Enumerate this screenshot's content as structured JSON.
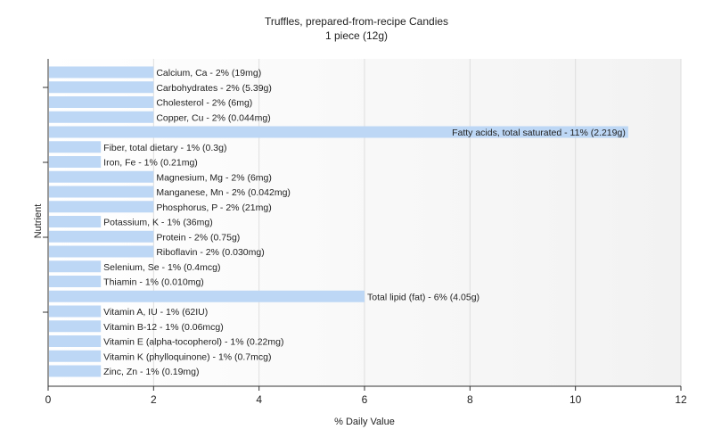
{
  "chart_data": {
    "type": "bar",
    "orientation": "horizontal",
    "title": "Truffles, prepared-from-recipe Candies",
    "subtitle": "1 piece (12g)",
    "xlabel": "% Daily Value",
    "ylabel": "Nutrient",
    "xlim": [
      0,
      12
    ],
    "xticks": [
      0,
      2,
      4,
      6,
      8,
      10,
      12
    ],
    "grid": true,
    "bar_color": "#bdd7f5",
    "categories": [
      "Calcium, Ca",
      "Carbohydrates",
      "Cholesterol",
      "Copper, Cu",
      "Fatty acids, total saturated",
      "Fiber, total dietary",
      "Iron, Fe",
      "Magnesium, Mg",
      "Manganese, Mn",
      "Phosphorus, P",
      "Potassium, K",
      "Protein",
      "Riboflavin",
      "Selenium, Se",
      "Thiamin",
      "Total lipid (fat)",
      "Vitamin A, IU",
      "Vitamin B-12",
      "Vitamin E (alpha-tocopherol)",
      "Vitamin K (phylloquinone)",
      "Zinc, Zn"
    ],
    "values": [
      2,
      2,
      2,
      2,
      11,
      1,
      1,
      2,
      2,
      2,
      1,
      2,
      2,
      1,
      1,
      6,
      1,
      1,
      1,
      1,
      1
    ],
    "labels": [
      "Calcium, Ca - 2% (19mg)",
      "Carbohydrates - 2% (5.39g)",
      "Cholesterol - 2% (6mg)",
      "Copper, Cu - 2% (0.044mg)",
      "Fatty acids, total saturated - 11% (2.219g)",
      "Fiber, total dietary - 1% (0.3g)",
      "Iron, Fe - 1% (0.21mg)",
      "Magnesium, Mg - 2% (6mg)",
      "Manganese, Mn - 2% (0.042mg)",
      "Phosphorus, P - 2% (21mg)",
      "Potassium, K - 1% (36mg)",
      "Protein - 2% (0.75g)",
      "Riboflavin - 2% (0.030mg)",
      "Selenium, Se - 1% (0.4mcg)",
      "Thiamin - 1% (0.010mg)",
      "Total lipid (fat) - 6% (4.05g)",
      "Vitamin A, IU - 1% (62IU)",
      "Vitamin B-12 - 1% (0.06mcg)",
      "Vitamin E (alpha-tocopherol) - 1% (0.22mg)",
      "Vitamin K (phylloquinone) - 1% (0.7mcg)",
      "Zinc, Zn - 1% (0.19mg)"
    ]
  }
}
